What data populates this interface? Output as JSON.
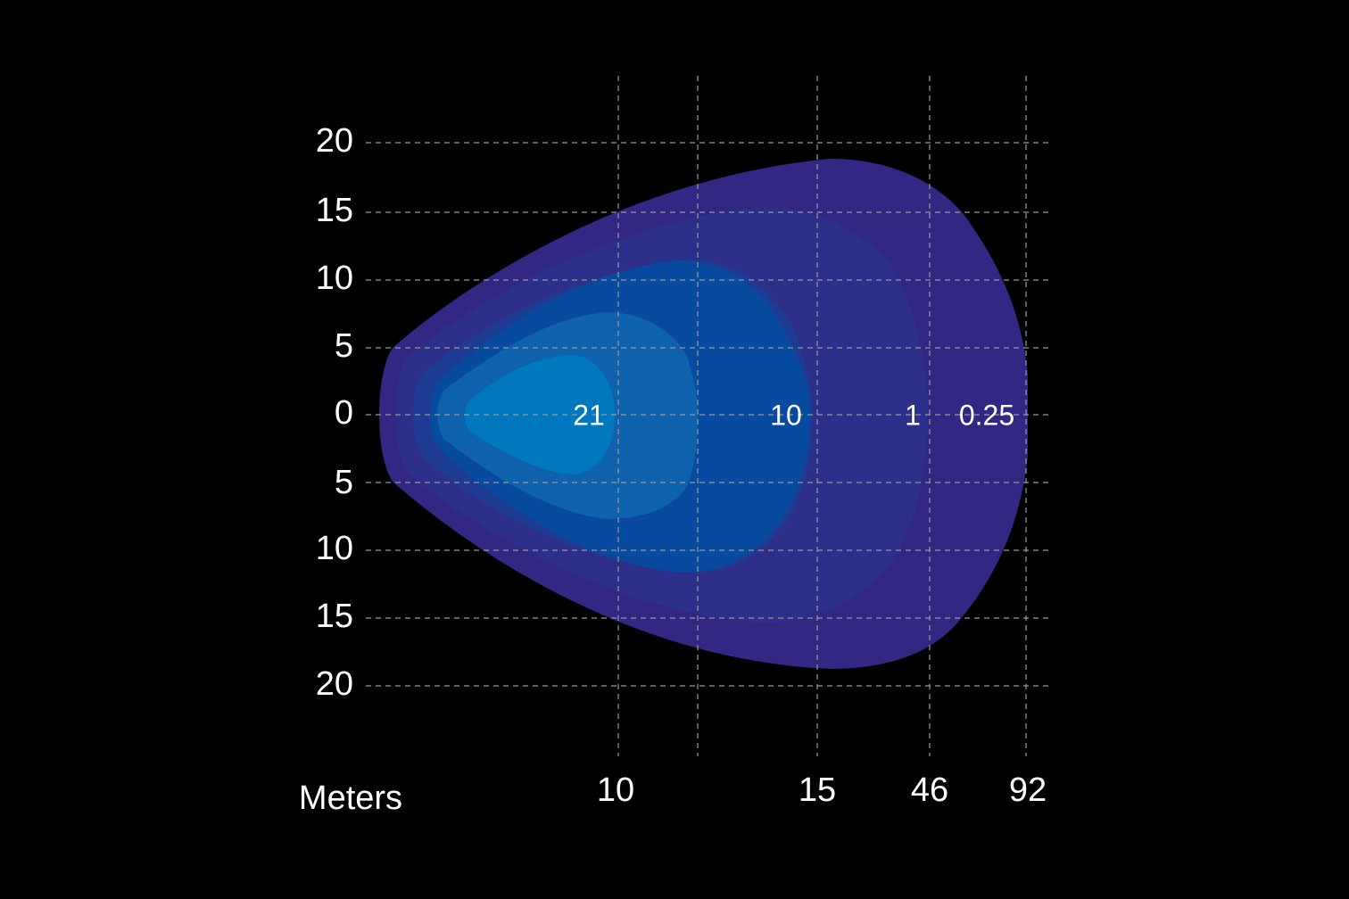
{
  "y_labels": [
    "20",
    "15",
    "10",
    "5",
    "0",
    "5",
    "10",
    "15",
    "20"
  ],
  "x_axis_title": "Meters",
  "x_labels": [
    "10",
    "15",
    "46",
    "92"
  ],
  "contour_labels": [
    "21",
    "10",
    "1",
    "0.25"
  ]
}
